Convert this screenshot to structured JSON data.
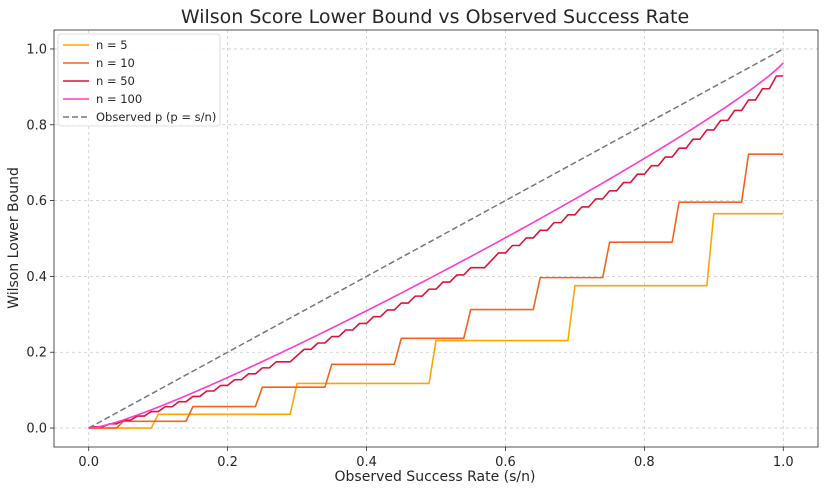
{
  "chart_data": {
    "type": "line",
    "title": "Wilson Score Lower Bound vs Observed Success Rate",
    "xlabel": "Observed Success Rate (s/n)",
    "ylabel": "Wilson Lower Bound",
    "xlim": [
      -0.05,
      1.05
    ],
    "ylim": [
      -0.05,
      1.05
    ],
    "xticks": [
      "0.0",
      "0.2",
      "0.4",
      "0.6",
      "0.8",
      "1.0"
    ],
    "yticks": [
      "0.0",
      "0.2",
      "0.4",
      "0.6",
      "0.8",
      "1.0"
    ],
    "grid": true,
    "legend_position": "top-left",
    "x_range": [
      0,
      1
    ],
    "z": 1.96,
    "series": [
      {
        "name": "n = 5",
        "n": 5,
        "color": "#ffa500",
        "style": "solid"
      },
      {
        "name": "n = 10",
        "n": 10,
        "color": "#f0641e",
        "style": "solid"
      },
      {
        "name": "n = 50",
        "n": 50,
        "color": "#dc143c",
        "style": "solid"
      },
      {
        "name": "n = 100",
        "n": 100,
        "color": "#ff3cc8",
        "style": "solid"
      },
      {
        "name": "Observed p (p = s/n)",
        "n": null,
        "color": "#777777",
        "style": "dashed"
      }
    ]
  }
}
